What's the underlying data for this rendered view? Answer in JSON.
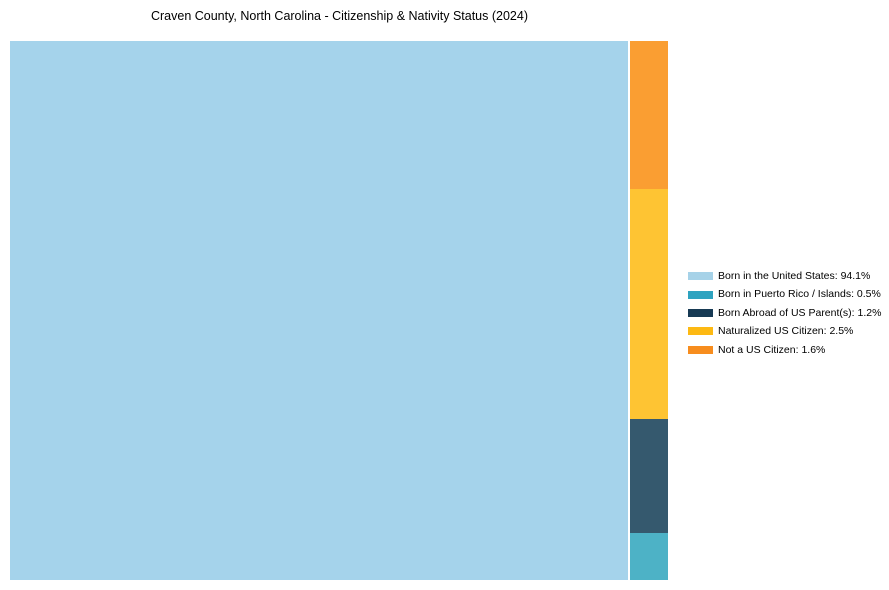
{
  "chart": {
    "title": "Craven County, North Carolina - Citizenship & Nativity Status (2024)"
  },
  "chart_data": {
    "type": "treemap",
    "title": "Craven County, North Carolina - Citizenship & Nativity Status (2024)",
    "categories": [
      "Born in the United States",
      "Born in Puerto Rico / Islands",
      "Born Abroad of US Parent(s)",
      "Naturalized US Citizen",
      "Not a US Citizen"
    ],
    "values": [
      94.1,
      0.5,
      1.2,
      2.5,
      1.6
    ],
    "unit": "%",
    "legend_position": "right",
    "layout_note": "single large tile at left for Born in the United States; narrow right column stacked top-to-bottom: Not a US Citizen, Naturalized US Citizen, Born Abroad of US Parent(s), Born in Puerto Rico / Islands",
    "swatch_colors": [
      "#A6D2E8",
      "#2EA3C0",
      "#173A54",
      "#FDB913",
      "#F78D1E"
    ],
    "tile_colors": [
      "#A5D3EB",
      "#4DB2C6",
      "#35596E",
      "#FEC433",
      "#FA9E32"
    ]
  },
  "tiles": {
    "born_in_us": {
      "name": "Born in the United States",
      "color": "#A5D3EB"
    },
    "not_a_us_citizen": {
      "name": "Not a US Citizen",
      "color": "#FA9E32"
    },
    "naturalized": {
      "name": "Naturalized US Citizen",
      "color": "#FEC433"
    },
    "born_abroad": {
      "name": "Born Abroad of US Parent(s)",
      "color": "#35596E"
    },
    "puerto_rico_islands": {
      "name": "Born in Puerto Rico / Islands",
      "color": "#4DB2C6"
    }
  },
  "legend": {
    "items": [
      {
        "label": "Born in the United States: 94.1%",
        "color": "#A6D2E8"
      },
      {
        "label": "Born in Puerto Rico / Islands: 0.5%",
        "color": "#2EA3C0"
      },
      {
        "label": "Born Abroad of US Parent(s): 1.2%",
        "color": "#173A54"
      },
      {
        "label": "Naturalized US Citizen: 2.5%",
        "color": "#FDB913"
      },
      {
        "label": "Not a US Citizen: 1.6%",
        "color": "#F78D1E"
      }
    ]
  }
}
